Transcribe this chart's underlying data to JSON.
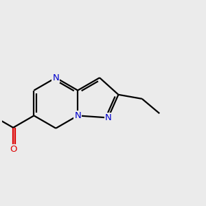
{
  "bg_color": "#ebebeb",
  "bond_color": "#000000",
  "N_color": "#0000cc",
  "O_color": "#dd0000",
  "line_width": 1.6,
  "font_size_atom": 9.5,
  "fig_size": [
    3.0,
    3.0
  ],
  "dpi": 100,
  "xlim": [
    -2.5,
    5.5
  ],
  "ylim": [
    -3.0,
    3.0
  ]
}
